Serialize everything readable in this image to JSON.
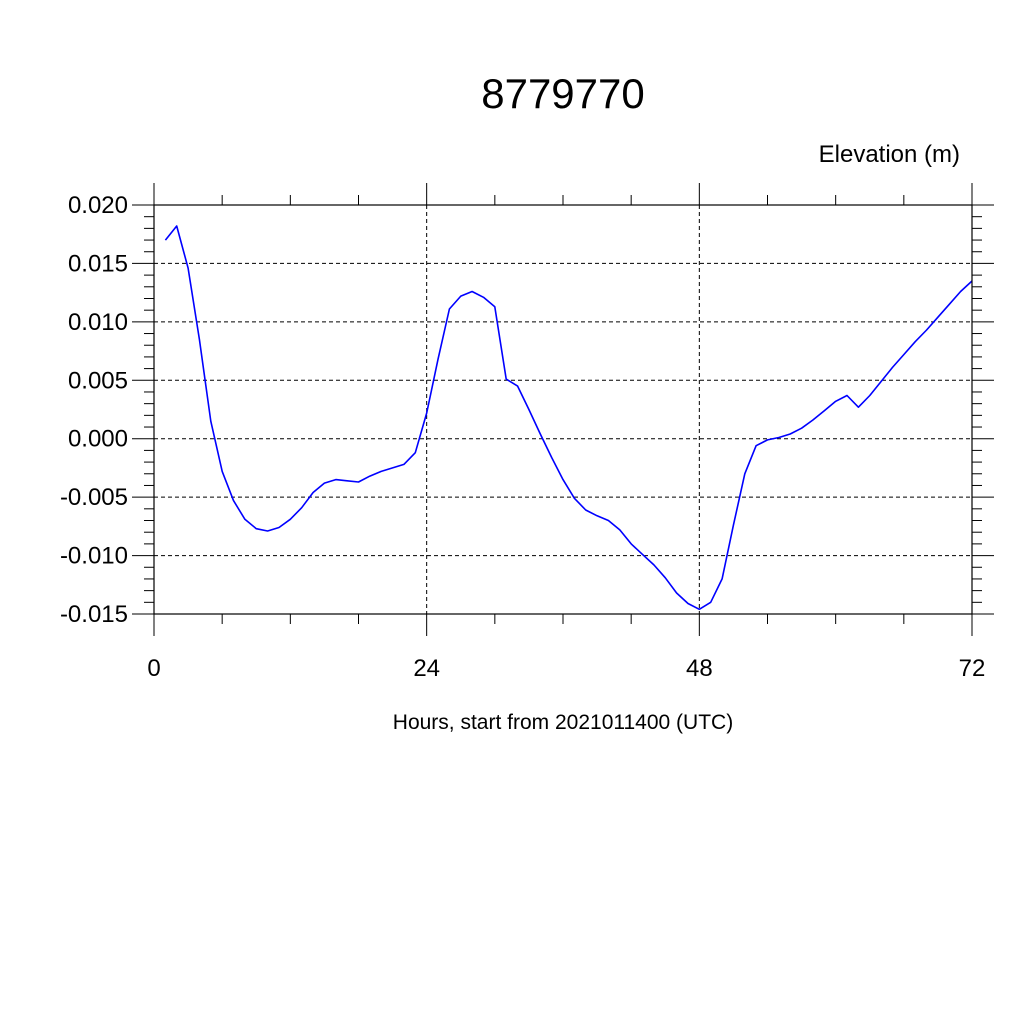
{
  "chart_data": {
    "type": "line",
    "title": "8779770",
    "ylabel": "Elevation (m)",
    "xlabel": "Hours, start from 2021011400 (UTC)",
    "xlim": [
      0,
      72
    ],
    "ylim": [
      -0.015,
      0.02
    ],
    "x_ticks": [
      0,
      24,
      48,
      72
    ],
    "x_tick_labels": [
      "0",
      "24",
      "48",
      "72"
    ],
    "y_ticks": [
      -0.015,
      -0.01,
      -0.005,
      0.0,
      0.005,
      0.01,
      0.015,
      0.02
    ],
    "y_tick_labels": [
      "-0.015",
      "-0.010",
      "-0.005",
      "0.000",
      "0.005",
      "0.010",
      "0.015",
      "0.020"
    ],
    "grid": true,
    "line_color": "#0000ff",
    "series": [
      {
        "x": [
          1,
          2,
          3,
          4,
          5,
          6,
          7,
          8,
          9,
          10,
          11,
          12,
          13,
          14,
          15,
          16,
          17,
          18,
          19,
          20,
          21,
          22,
          23,
          24,
          25,
          26,
          27,
          28,
          29,
          30,
          31,
          32,
          33,
          34,
          35,
          36,
          37,
          38,
          39,
          40,
          41,
          42,
          43,
          44,
          45,
          46,
          47,
          48,
          49,
          50,
          51,
          52,
          53,
          54,
          55,
          56,
          57,
          58,
          59,
          60,
          61,
          62,
          63,
          64,
          65,
          66,
          67,
          68,
          69,
          70,
          71,
          72
        ],
        "y": [
          0.017,
          0.0182,
          0.0146,
          0.0085,
          0.0015,
          -0.0028,
          -0.0053,
          -0.0069,
          -0.0077,
          -0.0079,
          -0.0076,
          -0.0069,
          -0.0059,
          -0.0046,
          -0.0038,
          -0.0035,
          -0.0036,
          -0.0037,
          -0.0032,
          -0.0028,
          -0.0025,
          -0.0022,
          -0.0012,
          0.0022,
          0.0068,
          0.0111,
          0.0122,
          0.0126,
          0.0121,
          0.0113,
          0.0051,
          0.0045,
          0.0025,
          0.0004,
          -0.0016,
          -0.0035,
          -0.0051,
          -0.0061,
          -0.0066,
          -0.007,
          -0.0078,
          -0.009,
          -0.0099,
          -0.0108,
          -0.0119,
          -0.0132,
          -0.0141,
          -0.0146,
          -0.014,
          -0.012,
          -0.0074,
          -0.003,
          -0.0006,
          -0.0001,
          0.0001,
          0.0004,
          0.0009,
          0.0016,
          0.0024,
          0.0032,
          0.0037,
          0.0027,
          0.0037,
          0.0049,
          0.0061,
          0.0072,
          0.0083,
          0.0093,
          0.0104,
          0.0115,
          0.0126,
          0.0135
        ]
      }
    ]
  }
}
